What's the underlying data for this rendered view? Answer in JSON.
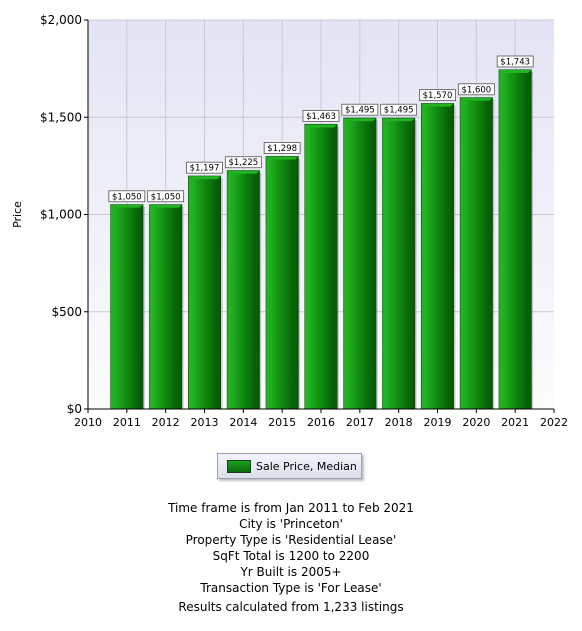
{
  "chart_data": {
    "type": "bar",
    "ylabel": "Price",
    "xlabel": "",
    "categories": [
      "2011",
      "2012",
      "2013",
      "2014",
      "2015",
      "2016",
      "2017",
      "2018",
      "2019",
      "2020",
      "2021"
    ],
    "series": [
      {
        "name": "Sale Price, Median",
        "values": [
          1050,
          1050,
          1197,
          1225,
          1298,
          1463,
          1495,
          1495,
          1570,
          1600,
          1743
        ],
        "data_labels": [
          "$1,050",
          "$1,050",
          "$1,197",
          "$1,225",
          "$1,298",
          "$1,463",
          "$1,495",
          "$1,495",
          "$1,570",
          "$1,600",
          "$1,743"
        ]
      }
    ],
    "xlim": [
      2010,
      2022
    ],
    "x_ticks": [
      "2010",
      "2011",
      "2012",
      "2013",
      "2014",
      "2015",
      "2016",
      "2017",
      "2018",
      "2019",
      "2020",
      "2021",
      "2022"
    ],
    "ylim": [
      0,
      2000
    ],
    "y_ticks": [
      {
        "value": 0,
        "label": "$0"
      },
      {
        "value": 500,
        "label": "$500"
      },
      {
        "value": 1000,
        "label": "$1,000"
      },
      {
        "value": 1500,
        "label": "$1,500"
      },
      {
        "value": 2000,
        "label": "$2,000"
      }
    ],
    "grid": true,
    "legend_placement": "bottom"
  },
  "colors": {
    "bar_face": "#0f8a0f",
    "bar_dark": "#075c07",
    "bar_light": "#22b422",
    "plot_bg_top": "#e3e4f4",
    "plot_bg_bottom": "#fcfcfe",
    "grid": "#c8c8dc"
  },
  "legend": {
    "label": "Sale Price, Median"
  },
  "summary": {
    "lines": [
      "Time frame is from Jan 2011 to Feb 2021",
      "City is 'Princeton'",
      "Property Type is 'Residential Lease'",
      "SqFt Total is 1200 to 2200",
      "Yr Built is 2005+",
      "Transaction Type is 'For Lease'"
    ],
    "results": "Results calculated from 1,233 listings"
  }
}
